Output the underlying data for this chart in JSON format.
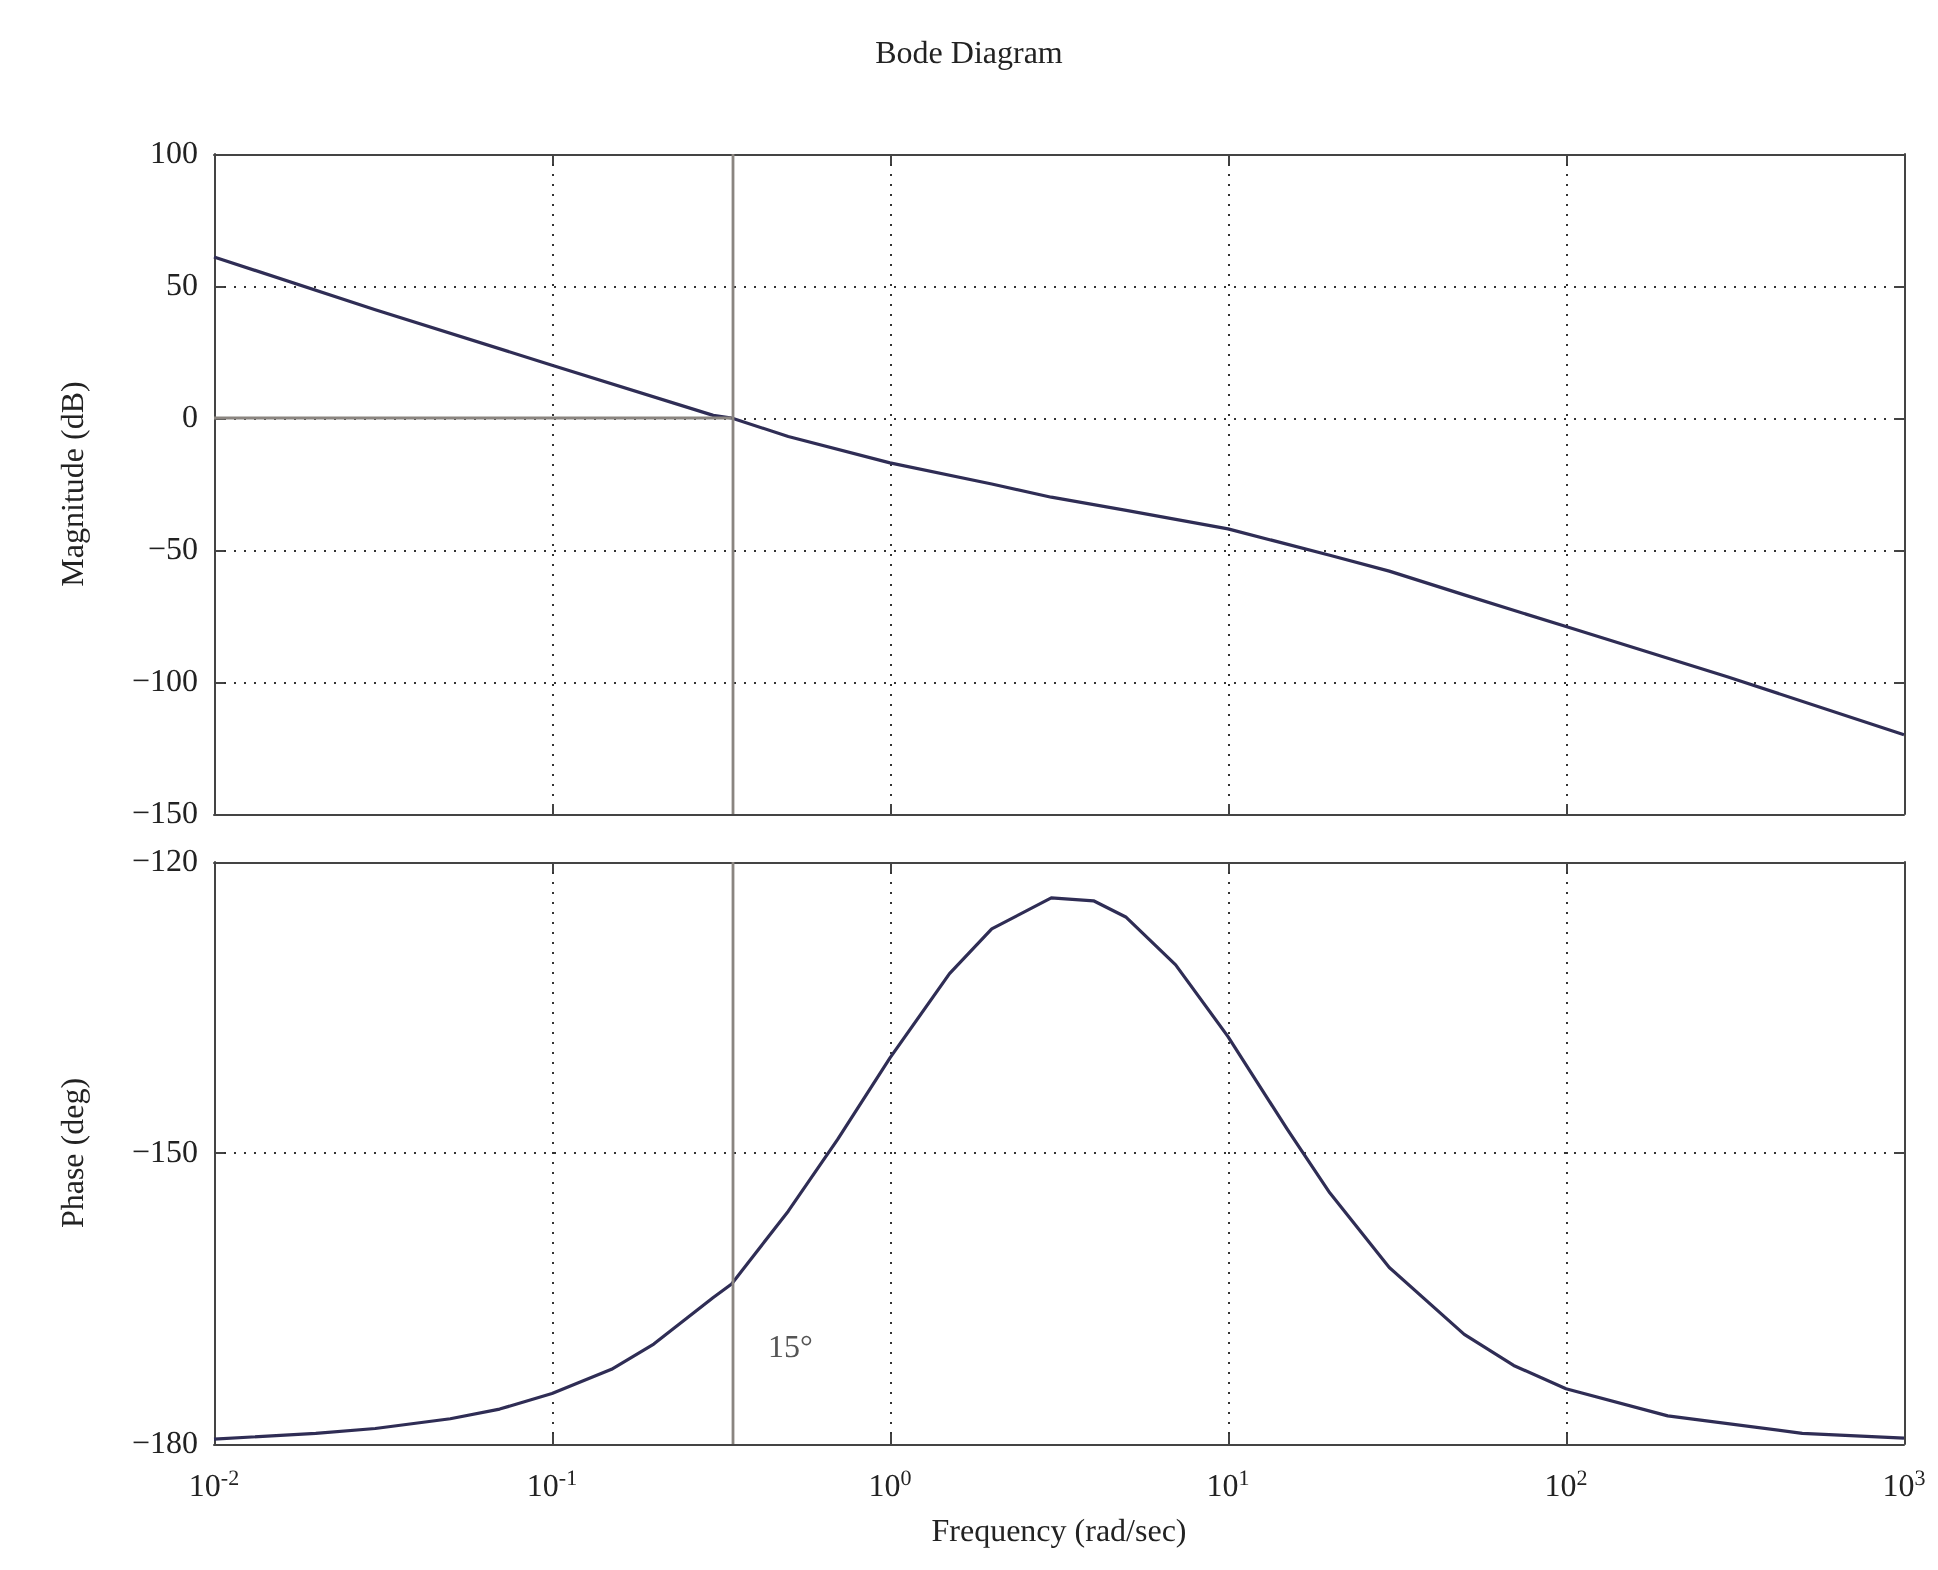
{
  "chart_data": [
    {
      "type": "line",
      "title": "Bode Diagram",
      "ylabel": "Magnitude (dB)",
      "xlim": [
        0.01,
        1000
      ],
      "ylim": [
        -150,
        100
      ],
      "log": "x",
      "grid": true,
      "tick_labels": "y",
      "xticks": [
        0.01,
        0.1,
        1,
        10,
        100,
        1000
      ],
      "yticks": [
        -150,
        -100,
        -50,
        0,
        50,
        100
      ],
      "series": [
        {
          "color": "#2f2d55",
          "x": [
            0.01,
            0.03,
            0.1,
            0.3,
            0.34,
            0.5,
            1,
            2,
            3,
            5,
            10,
            20,
            30,
            50,
            100,
            300,
            1000
          ],
          "values": [
            61,
            41,
            20,
            1,
            0,
            -7,
            -17,
            -25,
            -30,
            -35,
            -42,
            -52,
            -58,
            -67,
            -79,
            -98,
            -120
          ]
        },
        {
          "color": "#8a8580",
          "x": [
            0.01,
            0.34
          ],
          "values": [
            0,
            0
          ]
        }
      ],
      "ref_lines": [
        {
          "axis": "x",
          "value": 0.34,
          "color": "#8a8580"
        }
      ]
    },
    {
      "type": "line",
      "xlabel": "Frequency (rad/sec)",
      "ylabel": "Phase (deg)",
      "xlim": [
        0.01,
        1000
      ],
      "ylim": [
        -180,
        -120
      ],
      "log": "x",
      "grid": true,
      "xticks": [
        {
          "value": 0.01,
          "label": "10$^{-2}$"
        },
        {
          "value": 0.1,
          "label": "10$^{-1}$"
        },
        {
          "value": 1,
          "label": "10$^{0}$"
        },
        {
          "value": 10,
          "label": "10$^{1}$"
        },
        {
          "value": 100,
          "label": "10$^{2}$"
        },
        {
          "value": 1000,
          "label": "10$^{3}$"
        }
      ],
      "yticks": [
        -180,
        -150,
        -120
      ],
      "series": [
        {
          "color": "#2f2d55",
          "x": [
            0.01,
            0.02,
            0.03,
            0.05,
            0.07,
            0.1,
            0.15,
            0.2,
            0.3,
            0.34,
            0.5,
            0.7,
            1,
            1.5,
            2,
            3,
            4,
            5,
            7,
            10,
            15,
            20,
            30,
            50,
            70,
            100,
            200,
            500,
            1000
          ],
          "values": [
            -179.5,
            -178.9,
            -178.4,
            -177.4,
            -176.4,
            -174.8,
            -172.3,
            -169.7,
            -164.9,
            -163.5,
            -156,
            -148.6,
            -140.2,
            -131.5,
            -126.9,
            -123.7,
            -124,
            -125.7,
            -130.6,
            -138,
            -147.6,
            -154.1,
            -161.8,
            -168.7,
            -171.9,
            -174.3,
            -177.1,
            -178.9,
            -179.4
          ]
        }
      ],
      "ref_lines": [
        {
          "axis": "x",
          "value": 0.34,
          "color": "#8a8580"
        }
      ],
      "annotations": [
        "15°"
      ]
    }
  ]
}
